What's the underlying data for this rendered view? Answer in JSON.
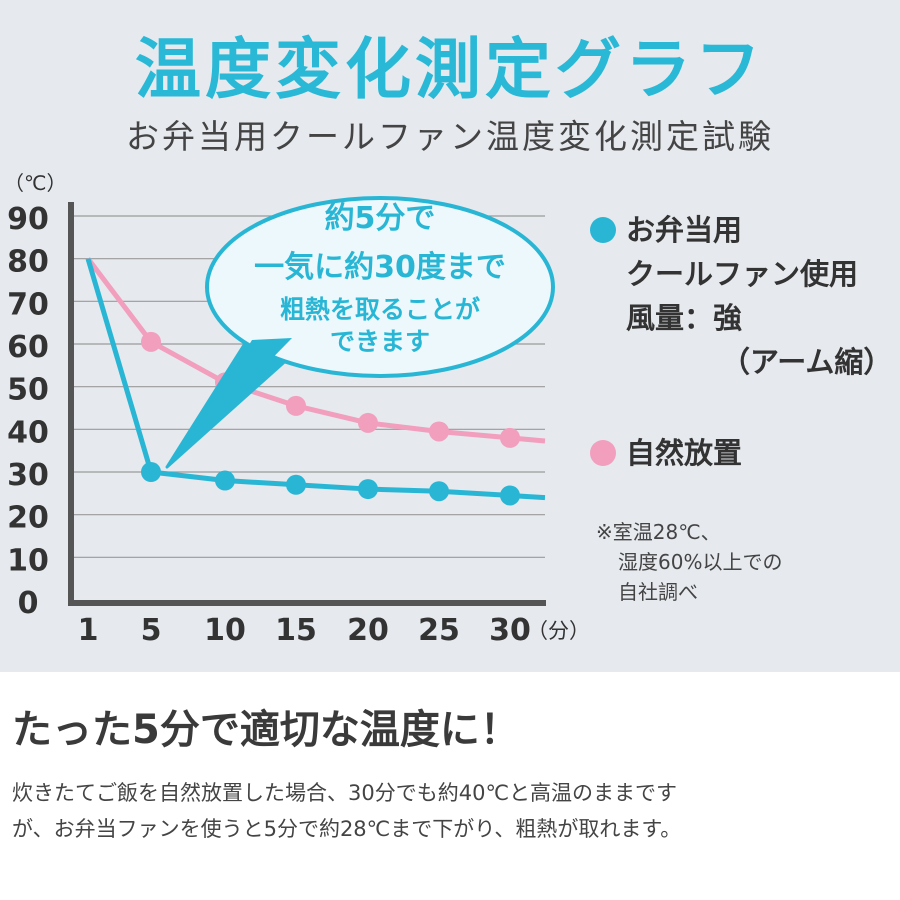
{
  "header": {
    "title": "温度変化測定グラフ",
    "subtitle": "お弁当用クールファン温度変化測定試験"
  },
  "callout": {
    "lines": [
      "約5分で",
      "一気に約30度まで",
      "粗熱を取ることが",
      "できます"
    ]
  },
  "legend": {
    "fan": [
      "お弁当用",
      "クールファン使用",
      "風量：強",
      "（アーム縮）"
    ],
    "natural": "自然放置"
  },
  "note": [
    "※室温28℃、",
    "湿度60%以上での",
    "自社調べ"
  ],
  "headline": "たった5分で適切な温度に！",
  "body": [
    "炊きたてご飯を自然放置した場合、30分でも約40℃と高温のままです",
    "が、お弁当ファンを使うと5分で約28℃まで下がり、粗熱が取れます。"
  ],
  "colors": {
    "fan": "#29b6d5",
    "natural": "#f29ebd",
    "axis": "#555555",
    "grid": "#9a9a9a"
  },
  "chart_data": {
    "type": "line",
    "title": "温度変化測定グラフ",
    "ylabel": "（℃）",
    "xlabel": "（分）",
    "categories": [
      "1",
      "5",
      "10",
      "15",
      "20",
      "25",
      "30"
    ],
    "x": [
      1,
      5,
      10,
      15,
      20,
      25,
      30
    ],
    "ylim": [
      0,
      90
    ],
    "yticks": [
      "90",
      "80",
      "70",
      "60",
      "50",
      "40",
      "30",
      "20",
      "10",
      "0"
    ],
    "grid": true,
    "legend_position": "right",
    "series": [
      {
        "name": "お弁当用クールファン使用 風量：強（アーム縮）",
        "key": "fan",
        "values": [
          80,
          30,
          28,
          27,
          26,
          25.5,
          24.5
        ]
      },
      {
        "name": "自然放置",
        "key": "natural",
        "values": [
          80,
          60.5,
          51,
          45.5,
          41.5,
          39.5,
          38
        ]
      }
    ]
  }
}
